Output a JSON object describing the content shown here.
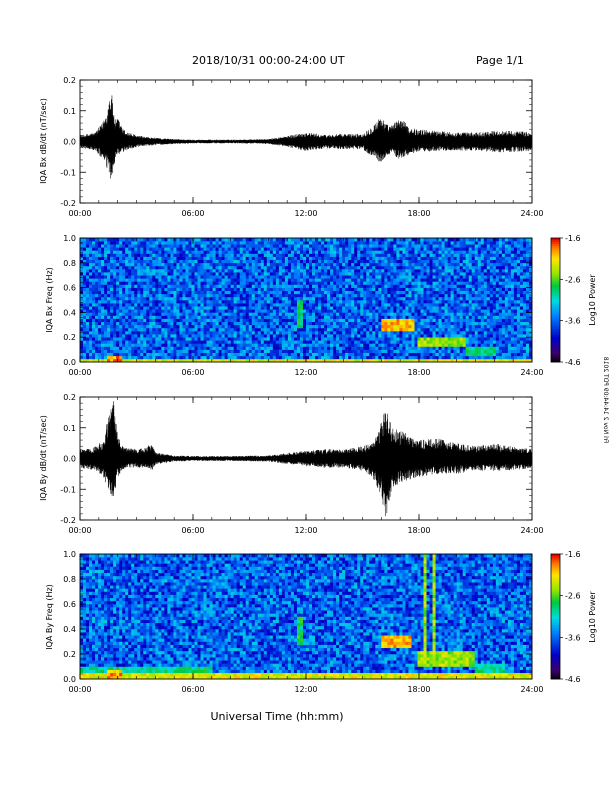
{
  "header": {
    "date_range": "2018/10/31   00:00-24:00 UT",
    "page": "Page 1/1"
  },
  "side_note": "Fri Nov 2 14:44:09 PDT 2018",
  "xlabel": "Universal Time (hh:mm)",
  "chart_data": [
    {
      "type": "line",
      "ylabel": "IQA Bx dB/dt (nT/sec)",
      "xlim": [
        0,
        24
      ],
      "ylim": [
        -0.2,
        0.2
      ],
      "xticks": [
        "00:00",
        "06:00",
        "12:00",
        "18:00",
        "24:00"
      ],
      "yticks": [
        "0.2",
        "0.1",
        "0.0",
        "-0.1",
        "-0.2"
      ],
      "envelope": {
        "x_hours": [
          0,
          0.8,
          1.2,
          1.5,
          1.6,
          1.7,
          1.8,
          1.9,
          2.0,
          2.3,
          2.6,
          3.0,
          3.5,
          4.0,
          5.0,
          6.0,
          8.0,
          10.0,
          11.0,
          11.5,
          12.0,
          13.0,
          14.0,
          15.0,
          15.5,
          15.8,
          16.0,
          16.2,
          16.5,
          17.0,
          17.5,
          18.0,
          19.0,
          20.0,
          21.0,
          22.0,
          23.0,
          24.0
        ],
        "max": [
          0.02,
          0.03,
          0.06,
          0.12,
          0.18,
          0.15,
          0.1,
          0.06,
          0.08,
          0.04,
          0.03,
          0.02,
          0.015,
          0.012,
          0.008,
          0.006,
          0.006,
          0.008,
          0.018,
          0.025,
          0.03,
          0.022,
          0.025,
          0.025,
          0.05,
          0.07,
          0.09,
          0.06,
          0.05,
          0.08,
          0.045,
          0.04,
          0.035,
          0.03,
          0.03,
          0.035,
          0.035,
          0.03
        ],
        "min": [
          -0.02,
          -0.03,
          -0.06,
          -0.1,
          -0.14,
          -0.12,
          -0.08,
          -0.05,
          -0.05,
          -0.035,
          -0.025,
          -0.02,
          -0.015,
          -0.012,
          -0.008,
          -0.006,
          -0.006,
          -0.008,
          -0.018,
          -0.025,
          -0.03,
          -0.022,
          -0.025,
          -0.025,
          -0.05,
          -0.06,
          -0.08,
          -0.05,
          -0.04,
          -0.06,
          -0.04,
          -0.035,
          -0.03,
          -0.03,
          -0.03,
          -0.035,
          -0.035,
          -0.03
        ]
      }
    },
    {
      "type": "heatmap",
      "ylabel": "IQA Bx Freq (Hz)",
      "colorbar_label": "Log10 Power",
      "colorbar_ticks": [
        "-1.6",
        "-2.6",
        "-3.6",
        "-4.6"
      ],
      "clim": [
        -4.6,
        -1.6
      ],
      "xlim": [
        0,
        24
      ],
      "ylim": [
        0,
        1.0
      ],
      "xticks": [
        "00:00",
        "06:00",
        "12:00",
        "18:00",
        "24:00"
      ],
      "yticks": [
        "1.0",
        "0.8",
        "0.6",
        "0.4",
        "0.2",
        "0.0"
      ],
      "background_log_power": -3.6,
      "features": [
        {
          "t0": 0.0,
          "t1": 24.0,
          "f0": 0.0,
          "f1": 0.03,
          "log_power": -2.2
        },
        {
          "t0": 1.4,
          "t1": 2.2,
          "f0": 0.0,
          "f1": 0.06,
          "log_power": -1.9
        },
        {
          "t0": 11.6,
          "t1": 11.9,
          "f0": 0.28,
          "f1": 0.5,
          "log_power": -2.8
        },
        {
          "t0": 16.0,
          "t1": 17.8,
          "f0": 0.24,
          "f1": 0.36,
          "log_power": -2.0
        },
        {
          "t0": 18.0,
          "t1": 20.5,
          "f0": 0.12,
          "f1": 0.2,
          "log_power": -2.4
        },
        {
          "t0": 20.5,
          "t1": 22.0,
          "f0": 0.05,
          "f1": 0.12,
          "log_power": -2.9
        }
      ]
    },
    {
      "type": "line",
      "ylabel": "IQA By dB/dt (nT/sec)",
      "xlim": [
        0,
        24
      ],
      "ylim": [
        -0.2,
        0.2
      ],
      "xticks": [
        "00:00",
        "06:00",
        "12:00",
        "18:00",
        "24:00"
      ],
      "yticks": [
        "0.2",
        "0.1",
        "0.0",
        "-0.1",
        "-0.2"
      ],
      "envelope": {
        "x_hours": [
          0,
          0.8,
          1.2,
          1.5,
          1.7,
          1.8,
          1.9,
          2.0,
          2.3,
          2.6,
          3.0,
          3.5,
          3.8,
          4.0,
          5.0,
          6.0,
          8.0,
          10.0,
          11.0,
          12.0,
          13.0,
          14.0,
          15.0,
          15.5,
          15.8,
          16.0,
          16.2,
          16.4,
          16.6,
          17.0,
          17.5,
          18.0,
          19.0,
          20.0,
          21.0,
          22.0,
          23.0,
          24.0
        ],
        "max": [
          0.03,
          0.04,
          0.06,
          0.14,
          0.2,
          0.19,
          0.12,
          0.08,
          0.04,
          0.035,
          0.03,
          0.035,
          0.05,
          0.02,
          0.01,
          0.008,
          0.008,
          0.01,
          0.018,
          0.025,
          0.03,
          0.03,
          0.04,
          0.05,
          0.08,
          0.12,
          0.16,
          0.14,
          0.1,
          0.09,
          0.08,
          0.06,
          0.065,
          0.05,
          0.04,
          0.05,
          0.04,
          0.03
        ],
        "min": [
          -0.03,
          -0.04,
          -0.06,
          -0.1,
          -0.14,
          -0.12,
          -0.09,
          -0.06,
          -0.035,
          -0.03,
          -0.03,
          -0.03,
          -0.04,
          -0.02,
          -0.01,
          -0.008,
          -0.008,
          -0.01,
          -0.018,
          -0.025,
          -0.03,
          -0.03,
          -0.04,
          -0.06,
          -0.1,
          -0.13,
          -0.2,
          -0.15,
          -0.1,
          -0.08,
          -0.07,
          -0.06,
          -0.05,
          -0.05,
          -0.04,
          -0.04,
          -0.04,
          -0.03
        ]
      }
    },
    {
      "type": "heatmap",
      "ylabel": "IQA By Freq (Hz)",
      "colorbar_label": "Log10 Power",
      "colorbar_ticks": [
        "-1.6",
        "-2.6",
        "-3.6",
        "-4.6"
      ],
      "clim": [
        -4.6,
        -1.6
      ],
      "xlim": [
        0,
        24
      ],
      "ylim": [
        0,
        1.0
      ],
      "xticks": [
        "00:00",
        "06:00",
        "12:00",
        "18:00",
        "24:00"
      ],
      "yticks": [
        "1.0",
        "0.8",
        "0.6",
        "0.4",
        "0.2",
        "0.0"
      ],
      "background_log_power": -3.6,
      "features": [
        {
          "t0": 0.0,
          "t1": 24.0,
          "f0": 0.0,
          "f1": 0.04,
          "log_power": -2.2
        },
        {
          "t0": 0.0,
          "t1": 7.0,
          "f0": 0.04,
          "f1": 0.1,
          "log_power": -2.9
        },
        {
          "t0": 1.4,
          "t1": 2.2,
          "f0": 0.0,
          "f1": 0.08,
          "log_power": -1.9
        },
        {
          "t0": 11.6,
          "t1": 11.9,
          "f0": 0.28,
          "f1": 0.5,
          "log_power": -2.8
        },
        {
          "t0": 16.0,
          "t1": 17.6,
          "f0": 0.24,
          "f1": 0.36,
          "log_power": -2.0
        },
        {
          "t0": 18.0,
          "t1": 21.0,
          "f0": 0.1,
          "f1": 0.22,
          "log_power": -2.4
        },
        {
          "t0": 21.0,
          "t1": 22.5,
          "f0": 0.06,
          "f1": 0.12,
          "log_power": -2.9
        },
        {
          "t0": 18.2,
          "t1": 18.4,
          "f0": 0.1,
          "f1": 1.0,
          "log_power": -2.4
        },
        {
          "t0": 18.7,
          "t1": 18.8,
          "f0": 0.1,
          "f1": 1.0,
          "log_power": -2.4
        },
        {
          "t0": 19.0,
          "t1": 19.1,
          "f0": 0.1,
          "f1": 1.0,
          "log_power": -2.6
        },
        {
          "t0": 19.8,
          "t1": 19.9,
          "f0": 0.1,
          "f1": 0.7,
          "log_power": -2.8
        }
      ]
    }
  ]
}
